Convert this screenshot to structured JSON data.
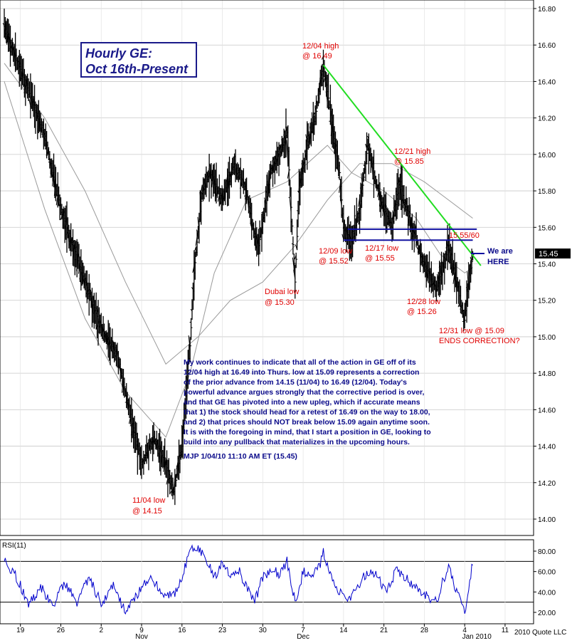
{
  "chart_data": [
    {
      "type": "line",
      "subtype": "ohlc-hourly",
      "title_lines": [
        "Hourly GE:",
        "Oct 16th-Present"
      ],
      "y_ticks": [
        "16.80",
        "16.60",
        "16.40",
        "16.20",
        "16.00",
        "15.80",
        "15.60",
        "15.40",
        "15.20",
        "15.00",
        "14.80",
        "14.60",
        "14.40",
        "14.20",
        "14.00"
      ],
      "ylim": [
        13.93,
        16.85
      ],
      "x_ticks": [
        "19",
        "26",
        "2",
        "9",
        "16",
        "23",
        "30",
        "7",
        "14",
        "21",
        "28",
        "4",
        "11"
      ],
      "x_month_labels": [
        "Nov",
        "Dec",
        "Jan 2010"
      ],
      "last_price": "15.45",
      "grid": true,
      "series": [
        {
          "type": "ohlc",
          "price_points": [
            {
              "x": 0,
              "y": 16.7
            },
            {
              "x": 6,
              "y": 16.35
            },
            {
              "x": 10,
              "y": 16.1
            },
            {
              "x": 14,
              "y": 15.7
            },
            {
              "x": 20,
              "y": 15.3
            },
            {
              "x": 24,
              "y": 15.05
            },
            {
              "x": 28,
              "y": 14.9
            },
            {
              "x": 32,
              "y": 14.5
            },
            {
              "x": 34,
              "y": 14.3
            },
            {
              "x": 37,
              "y": 14.45
            },
            {
              "x": 40,
              "y": 14.3
            },
            {
              "x": 42,
              "y": 14.15
            },
            {
              "x": 44,
              "y": 14.4
            },
            {
              "x": 46,
              "y": 14.95
            },
            {
              "x": 47,
              "y": 15.35
            },
            {
              "x": 49,
              "y": 15.8
            },
            {
              "x": 51,
              "y": 15.9
            },
            {
              "x": 54,
              "y": 15.75
            },
            {
              "x": 57,
              "y": 15.95
            },
            {
              "x": 60,
              "y": 15.8
            },
            {
              "x": 62,
              "y": 15.55
            },
            {
              "x": 63,
              "y": 15.5
            },
            {
              "x": 66,
              "y": 15.9
            },
            {
              "x": 69,
              "y": 16.05
            },
            {
              "x": 70,
              "y": 16.12
            },
            {
              "x": 72,
              "y": 15.3
            },
            {
              "x": 73,
              "y": 15.8
            },
            {
              "x": 75,
              "y": 16.05
            },
            {
              "x": 77,
              "y": 16.2
            },
            {
              "x": 79,
              "y": 16.49
            },
            {
              "x": 81,
              "y": 16.2
            },
            {
              "x": 83,
              "y": 15.9
            },
            {
              "x": 84,
              "y": 15.6
            },
            {
              "x": 86,
              "y": 15.52
            },
            {
              "x": 88,
              "y": 15.7
            },
            {
              "x": 90,
              "y": 16.05
            },
            {
              "x": 92,
              "y": 15.85
            },
            {
              "x": 94,
              "y": 15.7
            },
            {
              "x": 96,
              "y": 15.6
            },
            {
              "x": 98,
              "y": 15.85
            },
            {
              "x": 99,
              "y": 15.75
            },
            {
              "x": 101,
              "y": 15.6
            },
            {
              "x": 102,
              "y": 15.55
            },
            {
              "x": 103,
              "y": 15.45
            },
            {
              "x": 105,
              "y": 15.35
            },
            {
              "x": 107,
              "y": 15.26
            },
            {
              "x": 109,
              "y": 15.4
            },
            {
              "x": 110,
              "y": 15.5
            },
            {
              "x": 112,
              "y": 15.3
            },
            {
              "x": 113,
              "y": 15.2
            },
            {
              "x": 114,
              "y": 15.09
            },
            {
              "x": 115,
              "y": 15.3
            },
            {
              "x": 116,
              "y": 15.45
            }
          ]
        },
        {
          "name": "short moving average",
          "type": "line",
          "points": [
            {
              "x": 0,
              "y": 16.4
            },
            {
              "x": 10,
              "y": 15.7
            },
            {
              "x": 20,
              "y": 15.1
            },
            {
              "x": 30,
              "y": 14.7
            },
            {
              "x": 40,
              "y": 14.45
            },
            {
              "x": 46,
              "y": 14.8
            },
            {
              "x": 52,
              "y": 15.35
            },
            {
              "x": 60,
              "y": 15.75
            },
            {
              "x": 70,
              "y": 15.85
            },
            {
              "x": 80,
              "y": 16.05
            },
            {
              "x": 86,
              "y": 15.9
            },
            {
              "x": 94,
              "y": 15.8
            },
            {
              "x": 102,
              "y": 15.65
            },
            {
              "x": 108,
              "y": 15.45
            },
            {
              "x": 114,
              "y": 15.35
            },
            {
              "x": 116,
              "y": 15.38
            }
          ]
        },
        {
          "name": "long moving average",
          "type": "line",
          "points": [
            {
              "x": 0,
              "y": 16.5
            },
            {
              "x": 10,
              "y": 16.2
            },
            {
              "x": 20,
              "y": 15.8
            },
            {
              "x": 30,
              "y": 15.3
            },
            {
              "x": 40,
              "y": 14.85
            },
            {
              "x": 48,
              "y": 15.0
            },
            {
              "x": 56,
              "y": 15.2
            },
            {
              "x": 64,
              "y": 15.3
            },
            {
              "x": 72,
              "y": 15.5
            },
            {
              "x": 80,
              "y": 15.75
            },
            {
              "x": 88,
              "y": 15.95
            },
            {
              "x": 96,
              "y": 15.95
            },
            {
              "x": 104,
              "y": 15.85
            },
            {
              "x": 110,
              "y": 15.75
            },
            {
              "x": 116,
              "y": 15.65
            }
          ]
        },
        {
          "name": "downtrend line",
          "type": "line",
          "color": "#22dd22",
          "points": [
            {
              "x": 79,
              "y": 16.49
            },
            {
              "x": 118,
              "y": 15.39
            }
          ]
        },
        {
          "name": "support 15.55/60",
          "type": "line",
          "color": "#1010a0",
          "points": [
            {
              "x": 85,
              "y": 15.59
            },
            {
              "x": 117,
              "y": 15.59
            }
          ]
        },
        {
          "name": "support 15.52",
          "type": "line",
          "color": "#1010a0",
          "points": [
            {
              "x": 84,
              "y": 15.53
            },
            {
              "x": 116,
              "y": 15.53
            }
          ]
        }
      ],
      "annotations": [
        {
          "lines": [
            "12/04 high",
            "@ 16.49"
          ],
          "color": "#e00000"
        },
        {
          "lines": [
            "12/21 high",
            "@ 15.85"
          ],
          "color": "#e00000"
        },
        {
          "lines": [
            "15.55/60"
          ],
          "color": "#e00000"
        },
        {
          "lines": [
            "12/09 low",
            "@ 15.52"
          ],
          "color": "#e00000"
        },
        {
          "lines": [
            "12/17 low",
            "@ 15.55"
          ],
          "color": "#e00000"
        },
        {
          "lines": [
            "Dubai low",
            "@ 15.30"
          ],
          "color": "#e00000"
        },
        {
          "lines": [
            "12/28 low",
            "@ 15.26"
          ],
          "color": "#e00000"
        },
        {
          "lines": [
            "12/31 low @ 15.09",
            "ENDS CORRECTION?"
          ],
          "color": "#e00000"
        },
        {
          "lines": [
            "11/04 low",
            "@ 14.15"
          ],
          "color": "#e00000"
        },
        {
          "lines": [
            "We are",
            "HERE"
          ],
          "color": "#0a0a8a"
        }
      ],
      "commentary": [
        "My work continues to indicate that all of the action in GE off of its",
        "12/04 high at 16.49 into Thurs. low at 15.09 represents a correction",
        "of the prior advance from 14.15 (11/04) to 16.49 (12/04). Today's",
        "powerful advance argues strongly that the corrective period is over,",
        "and that GE has pivoted into a new upleg, which if accurate means",
        "that 1) the stock should head for a retest of 16.49 on the way to 18.00,",
        "and 2) that prices should NOT break below 15.09 again anytime soon.",
        "It is with the foregoing in mind, that I start a position in GE, looking to",
        "build into any pullback that materializes in the upcoming hours.",
        "MJP  1/04/10 11:10 AM ET  (15.45)"
      ],
      "copyright": "2010 Quote LLC"
    },
    {
      "type": "line",
      "title": "RSI(11)",
      "y_ticks": [
        "80.00",
        "60.00",
        "40.00",
        "20.00"
      ],
      "ylim": [
        10,
        87
      ],
      "reference_levels": [
        70,
        30
      ],
      "series": [
        {
          "name": "RSI(11)",
          "color": "#0000cc",
          "points": [
            {
              "x": 0,
              "y": 70
            },
            {
              "x": 3,
              "y": 55
            },
            {
              "x": 6,
              "y": 28
            },
            {
              "x": 9,
              "y": 45
            },
            {
              "x": 12,
              "y": 25
            },
            {
              "x": 15,
              "y": 50
            },
            {
              "x": 18,
              "y": 30
            },
            {
              "x": 21,
              "y": 55
            },
            {
              "x": 24,
              "y": 28
            },
            {
              "x": 27,
              "y": 45
            },
            {
              "x": 30,
              "y": 20
            },
            {
              "x": 33,
              "y": 38
            },
            {
              "x": 36,
              "y": 55
            },
            {
              "x": 39,
              "y": 40
            },
            {
              "x": 42,
              "y": 38
            },
            {
              "x": 44,
              "y": 55
            },
            {
              "x": 46,
              "y": 80
            },
            {
              "x": 48,
              "y": 84
            },
            {
              "x": 50,
              "y": 72
            },
            {
              "x": 52,
              "y": 55
            },
            {
              "x": 54,
              "y": 68
            },
            {
              "x": 56,
              "y": 55
            },
            {
              "x": 58,
              "y": 62
            },
            {
              "x": 60,
              "y": 45
            },
            {
              "x": 62,
              "y": 30
            },
            {
              "x": 64,
              "y": 55
            },
            {
              "x": 66,
              "y": 62
            },
            {
              "x": 68,
              "y": 58
            },
            {
              "x": 70,
              "y": 70
            },
            {
              "x": 72,
              "y": 30
            },
            {
              "x": 74,
              "y": 60
            },
            {
              "x": 76,
              "y": 55
            },
            {
              "x": 78,
              "y": 65
            },
            {
              "x": 79,
              "y": 78
            },
            {
              "x": 81,
              "y": 55
            },
            {
              "x": 83,
              "y": 40
            },
            {
              "x": 85,
              "y": 32
            },
            {
              "x": 87,
              "y": 40
            },
            {
              "x": 89,
              "y": 55
            },
            {
              "x": 91,
              "y": 62
            },
            {
              "x": 93,
              "y": 50
            },
            {
              "x": 95,
              "y": 42
            },
            {
              "x": 97,
              "y": 62
            },
            {
              "x": 99,
              "y": 55
            },
            {
              "x": 101,
              "y": 48
            },
            {
              "x": 103,
              "y": 40
            },
            {
              "x": 105,
              "y": 35
            },
            {
              "x": 107,
              "y": 30
            },
            {
              "x": 109,
              "y": 55
            },
            {
              "x": 110,
              "y": 65
            },
            {
              "x": 112,
              "y": 40
            },
            {
              "x": 113,
              "y": 30
            },
            {
              "x": 114,
              "y": 22
            },
            {
              "x": 115,
              "y": 40
            },
            {
              "x": 116,
              "y": 70
            }
          ]
        }
      ]
    }
  ]
}
